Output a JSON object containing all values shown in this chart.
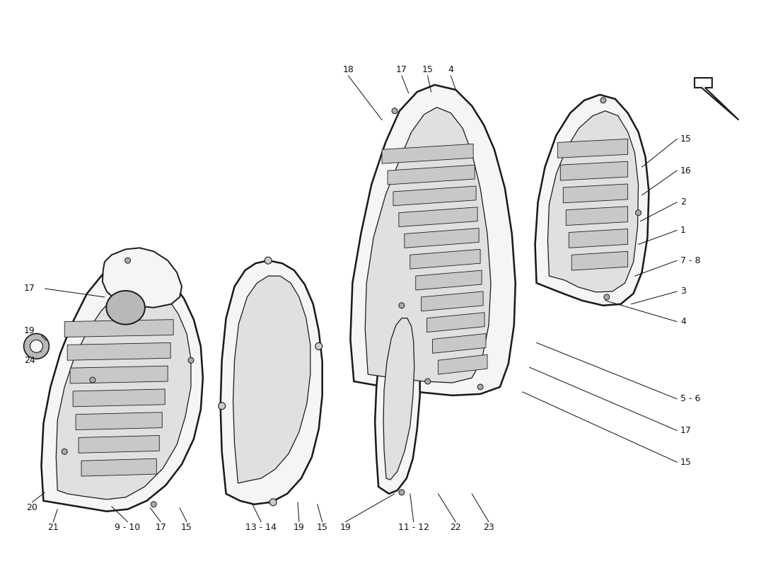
{
  "bg_color": "#ffffff",
  "line_color": "#1a1a1a",
  "figsize": [
    11.0,
    8.0
  ],
  "dpi": 100,
  "lw_main": 1.4,
  "lw_inner": 0.9,
  "lw_louver": 0.7,
  "lw_line": 0.75,
  "gray_fill": "#f5f5f5",
  "gray_mid": "#e0e0e0",
  "gray_dark": "#b8b8b8",
  "gray_louver": "#c8c8c8",
  "font_size": 9
}
